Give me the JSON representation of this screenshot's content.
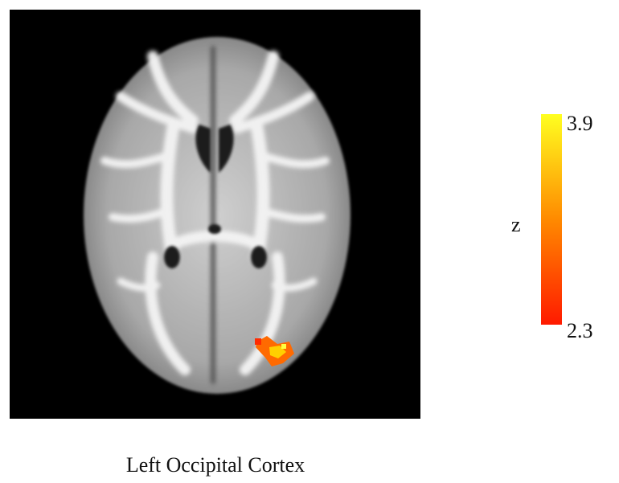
{
  "caption": "Left Occipital Cortex",
  "colorbar": {
    "label": "z",
    "max": 3.9,
    "min": 2.3
  }
}
